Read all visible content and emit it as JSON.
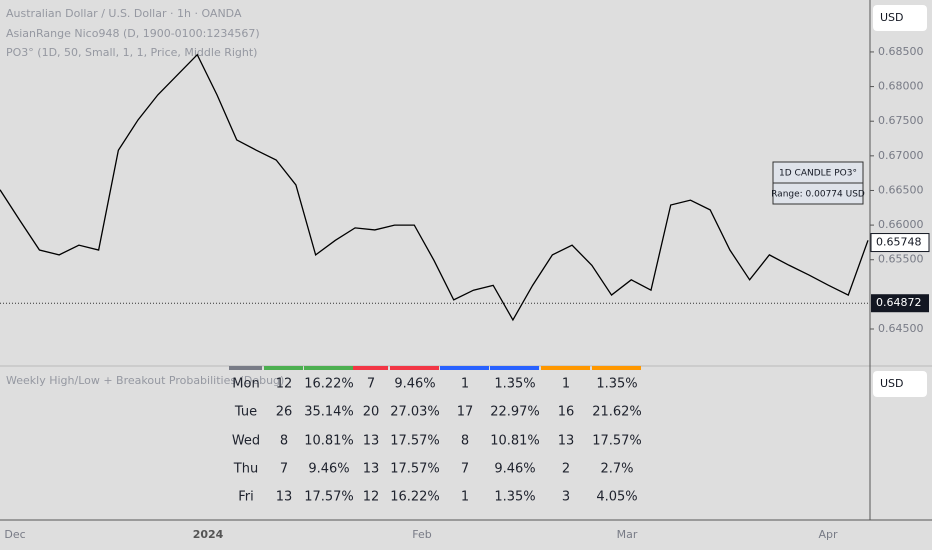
{
  "header": {
    "symbol": "Australian Dollar / U.S. Dollar · 1h · OANDA",
    "indicators": [
      "AsianRange Nico948 (D, 1900-0100:1234567)",
      "PO3° (1D, 50, Small, 1, 1, Price, Middle Right)"
    ]
  },
  "currency_buttons": [
    "USD",
    "USD"
  ],
  "price_chart": {
    "type": "line",
    "color": "#000000",
    "values": [
      0.6651,
      0.6607,
      0.6564,
      0.6557,
      0.6571,
      0.6564,
      0.6708,
      0.6752,
      0.6788,
      0.6817,
      0.6846,
      0.6788,
      0.6723,
      0.6708,
      0.6694,
      0.6658,
      0.6557,
      0.6578,
      0.6596,
      0.6593,
      0.66,
      0.66,
      0.6549,
      0.6492,
      0.6506,
      0.6513,
      0.6463,
      0.6513,
      0.6557,
      0.6571,
      0.6542,
      0.6499,
      0.6521,
      0.6506,
      0.6629,
      0.6636,
      0.6622,
      0.6564,
      0.6521,
      0.6557,
      0.6542,
      0.6528,
      0.6513,
      0.6499,
      0.6578
    ],
    "ylim": [
      0.6398,
      0.6925
    ],
    "yticks": [
      {
        "value": 0.685,
        "label": "0.68500"
      },
      {
        "value": 0.68,
        "label": "0.68000"
      },
      {
        "value": 0.675,
        "label": "0.67500"
      },
      {
        "value": 0.67,
        "label": "0.67000"
      },
      {
        "value": 0.665,
        "label": "0.66500"
      },
      {
        "value": 0.66,
        "label": "0.66000"
      },
      {
        "value": 0.655,
        "label": "0.65500"
      },
      {
        "value": 0.645,
        "label": "0.64500"
      }
    ],
    "last_price": {
      "value": 0.65748,
      "label": "0.65748"
    },
    "reference_price": {
      "value": 0.64872,
      "label": "0.64872"
    },
    "time_labels": [
      "Dec",
      "2024",
      "Feb",
      "Mar",
      "Apr"
    ]
  },
  "po3_box": {
    "title": "1D CANDLE PO3°",
    "range": "Range: 0.00774 USD"
  },
  "lower_pane": {
    "title": "Weekly High/Low + Breakout Probabilities (Debug)",
    "table": {
      "color_bar": [
        "#787b86",
        "#4caf50",
        "#4caf50",
        "#f23645",
        "#f23645",
        "#2962ff",
        "#2962ff",
        "#ff9800",
        "#ff9800"
      ],
      "rows": [
        [
          "Mon",
          "12",
          "16.22%",
          "7",
          "9.46%",
          "1",
          "1.35%",
          "1",
          "1.35%"
        ],
        [
          "Tue",
          "26",
          "35.14%",
          "20",
          "27.03%",
          "17",
          "22.97%",
          "16",
          "21.62%"
        ],
        [
          "Wed",
          "8",
          "10.81%",
          "13",
          "17.57%",
          "8",
          "10.81%",
          "13",
          "17.57%"
        ],
        [
          "Thu",
          "7",
          "9.46%",
          "13",
          "17.57%",
          "7",
          "9.46%",
          "2",
          "2.7%"
        ],
        [
          "Fri",
          "13",
          "17.57%",
          "12",
          "16.22%",
          "1",
          "1.35%",
          "3",
          "4.05%"
        ]
      ]
    }
  }
}
